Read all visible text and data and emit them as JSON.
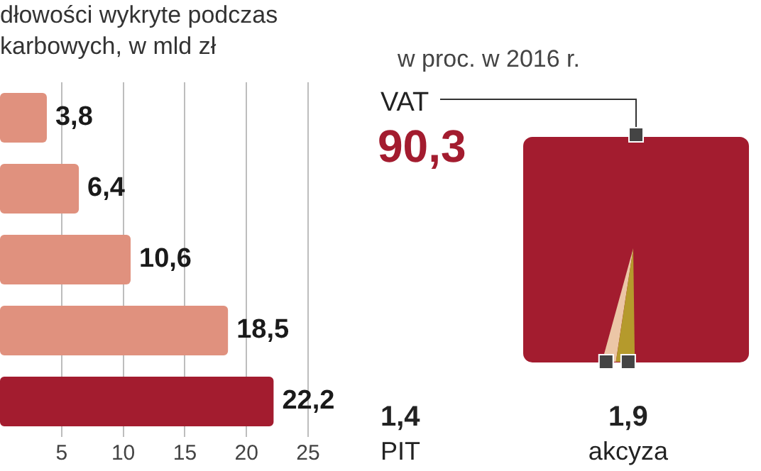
{
  "chart_data": [
    {
      "type": "bar",
      "title": "dłowości wykryte podczas karbowych, w mld zł",
      "orientation": "horizontal",
      "categories": [
        null,
        null,
        null,
        null,
        null
      ],
      "values": [
        3.8,
        6.4,
        10.6,
        18.5,
        22.2
      ],
      "value_labels": [
        "3,8",
        "6,4",
        "10,6",
        "18,5",
        "22,2"
      ],
      "colors": [
        "#e0917e",
        "#e0917e",
        "#e0917e",
        "#e0917e",
        "#a31c2f"
      ],
      "xlim": [
        0,
        25
      ],
      "xticks": [
        5,
        10,
        15,
        20,
        25
      ],
      "grid": "x"
    },
    {
      "type": "other",
      "title": "w proc. w 2016 r.",
      "categories": [
        "VAT",
        "PIT",
        "akcyza"
      ],
      "values": [
        90.3,
        1.4,
        1.9
      ],
      "value_labels": [
        "90,3",
        "1,4",
        "1,9"
      ],
      "colors": [
        "#a31c2f",
        "#ecc6a6",
        "#b59a2c"
      ]
    }
  ]
}
